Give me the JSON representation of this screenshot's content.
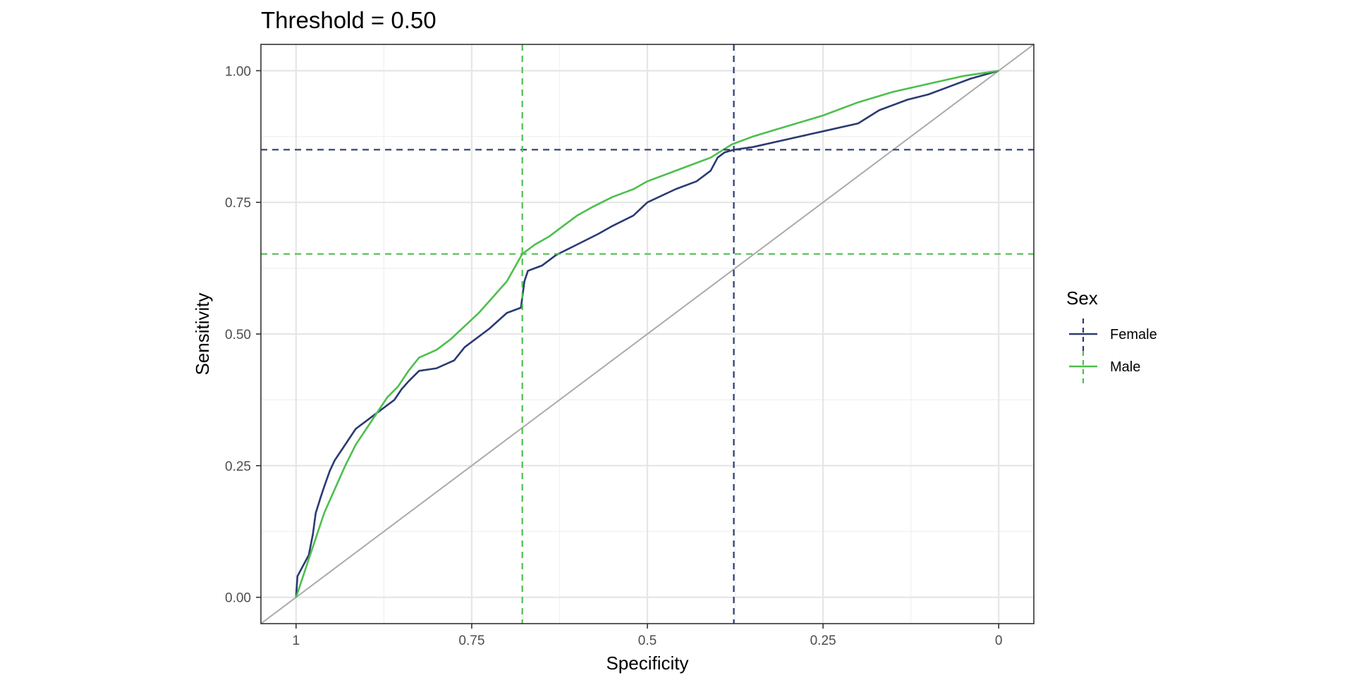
{
  "chart_data": {
    "type": "line",
    "title": "Threshold = 0.50",
    "xlabel": "Specificity",
    "ylabel": "Sensitivity",
    "x_reversed": true,
    "xlim": [
      1.05,
      -0.05
    ],
    "ylim": [
      -0.05,
      1.05
    ],
    "x_ticks": [
      1,
      0.75,
      0.5,
      0.25,
      0
    ],
    "x_tick_labels": [
      "1",
      "0.75",
      "0.5",
      "0.25",
      "0"
    ],
    "y_ticks": [
      0,
      0.25,
      0.5,
      0.75,
      1
    ],
    "y_tick_labels": [
      "0.00",
      "0.25",
      "0.50",
      "0.75",
      "1.00"
    ],
    "grid": true,
    "legend": {
      "title": "Sex",
      "placement": "right"
    },
    "reference_line": {
      "from": [
        1,
        0
      ],
      "to": [
        0,
        1
      ],
      "color": "#aaaaaa"
    },
    "series": [
      {
        "name": "Female",
        "color": "#2b3a72",
        "threshold_point": {
          "specificity": 0.377,
          "sensitivity": 0.85
        },
        "points": [
          [
            1.0,
            0.0
          ],
          [
            0.998,
            0.04
          ],
          [
            0.99,
            0.06
          ],
          [
            0.982,
            0.08
          ],
          [
            0.976,
            0.12
          ],
          [
            0.972,
            0.16
          ],
          [
            0.965,
            0.19
          ],
          [
            0.96,
            0.21
          ],
          [
            0.952,
            0.24
          ],
          [
            0.945,
            0.26
          ],
          [
            0.935,
            0.28
          ],
          [
            0.925,
            0.3
          ],
          [
            0.915,
            0.32
          ],
          [
            0.9,
            0.335
          ],
          [
            0.89,
            0.345
          ],
          [
            0.875,
            0.36
          ],
          [
            0.86,
            0.375
          ],
          [
            0.85,
            0.395
          ],
          [
            0.84,
            0.41
          ],
          [
            0.825,
            0.43
          ],
          [
            0.8,
            0.435
          ],
          [
            0.775,
            0.45
          ],
          [
            0.76,
            0.475
          ],
          [
            0.74,
            0.495
          ],
          [
            0.725,
            0.51
          ],
          [
            0.7,
            0.54
          ],
          [
            0.68,
            0.55
          ],
          [
            0.675,
            0.6
          ],
          [
            0.67,
            0.62
          ],
          [
            0.65,
            0.63
          ],
          [
            0.63,
            0.65
          ],
          [
            0.6,
            0.67
          ],
          [
            0.57,
            0.69
          ],
          [
            0.55,
            0.705
          ],
          [
            0.52,
            0.725
          ],
          [
            0.5,
            0.75
          ],
          [
            0.46,
            0.775
          ],
          [
            0.43,
            0.79
          ],
          [
            0.41,
            0.81
          ],
          [
            0.4,
            0.835
          ],
          [
            0.39,
            0.845
          ],
          [
            0.377,
            0.85
          ],
          [
            0.35,
            0.855
          ],
          [
            0.3,
            0.87
          ],
          [
            0.25,
            0.885
          ],
          [
            0.2,
            0.9
          ],
          [
            0.17,
            0.925
          ],
          [
            0.13,
            0.945
          ],
          [
            0.1,
            0.955
          ],
          [
            0.07,
            0.97
          ],
          [
            0.04,
            0.985
          ],
          [
            0.0,
            1.0
          ]
        ]
      },
      {
        "name": "Male",
        "color": "#4dbf4d",
        "threshold_point": {
          "specificity": 0.678,
          "sensitivity": 0.652
        },
        "points": [
          [
            1.0,
            0.0
          ],
          [
            0.99,
            0.04
          ],
          [
            0.98,
            0.08
          ],
          [
            0.97,
            0.12
          ],
          [
            0.96,
            0.16
          ],
          [
            0.95,
            0.19
          ],
          [
            0.94,
            0.22
          ],
          [
            0.93,
            0.25
          ],
          [
            0.915,
            0.29
          ],
          [
            0.9,
            0.32
          ],
          [
            0.885,
            0.35
          ],
          [
            0.87,
            0.38
          ],
          [
            0.855,
            0.4
          ],
          [
            0.84,
            0.43
          ],
          [
            0.825,
            0.455
          ],
          [
            0.8,
            0.47
          ],
          [
            0.78,
            0.49
          ],
          [
            0.76,
            0.515
          ],
          [
            0.74,
            0.54
          ],
          [
            0.72,
            0.57
          ],
          [
            0.7,
            0.6
          ],
          [
            0.678,
            0.652
          ],
          [
            0.66,
            0.67
          ],
          [
            0.64,
            0.685
          ],
          [
            0.62,
            0.705
          ],
          [
            0.6,
            0.725
          ],
          [
            0.58,
            0.74
          ],
          [
            0.55,
            0.76
          ],
          [
            0.52,
            0.775
          ],
          [
            0.5,
            0.79
          ],
          [
            0.47,
            0.805
          ],
          [
            0.44,
            0.82
          ],
          [
            0.41,
            0.835
          ],
          [
            0.38,
            0.86
          ],
          [
            0.35,
            0.875
          ],
          [
            0.3,
            0.895
          ],
          [
            0.25,
            0.915
          ],
          [
            0.2,
            0.94
          ],
          [
            0.15,
            0.96
          ],
          [
            0.1,
            0.975
          ],
          [
            0.05,
            0.99
          ],
          [
            0.0,
            1.0
          ]
        ]
      }
    ]
  }
}
